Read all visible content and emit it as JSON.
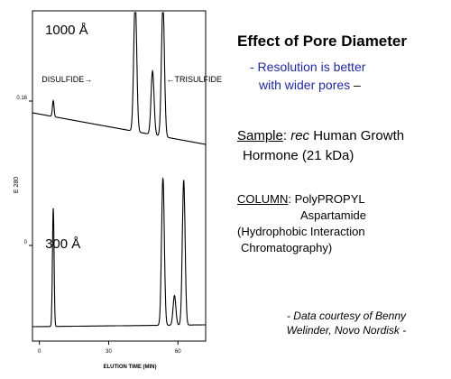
{
  "chart_data": {
    "type": "line",
    "xlabel": "ELUTION TIME (MIN)",
    "ylabel": "E 280",
    "x_ticks": [
      0,
      30,
      60
    ],
    "y_tick_labels": [
      "0.16",
      "0"
    ],
    "xlim": [
      -3,
      72
    ],
    "panels": [
      {
        "label": "1000 Å",
        "annotations": [
          "DISULFIDE→",
          "←TRISULFIDE"
        ],
        "peaks": [
          {
            "x": 6,
            "height": 0.12
          },
          {
            "x": 41.5,
            "height": 1.0
          },
          {
            "x": 49,
            "height": 0.48
          },
          {
            "x": 53.5,
            "height": 1.0
          }
        ]
      },
      {
        "label": "300 Å",
        "peaks": [
          {
            "x": 6,
            "height": 0.8
          },
          {
            "x": 53.5,
            "height": 1.0
          },
          {
            "x": 58.5,
            "height": 0.2
          },
          {
            "x": 62.5,
            "height": 0.98
          }
        ]
      }
    ]
  },
  "text": {
    "title": "Effect of Pore Diameter",
    "subtitle_line1": "- Resolution is better",
    "subtitle_line2": "with wider pores",
    "subtitle_dash": " –",
    "sample_label": "Sample",
    "sample_colon": ": ",
    "sample_italic": "rec",
    "sample_rest": " Human Growth",
    "sample_line2": "Hormone (21 kDa)",
    "column_label": "COLUMN",
    "column_rest": ": PolyPROPYL",
    "column_line2": "Aspartamide",
    "column_line3": "(Hydrophobic Interaction",
    "column_line4": "Chromatography)",
    "credit_line1": "- Data courtesy of Benny",
    "credit_line2": "Welinder, Novo Nordisk -"
  },
  "colors": {
    "accent_blue": "#1f2a9e",
    "trace": "#000000"
  }
}
